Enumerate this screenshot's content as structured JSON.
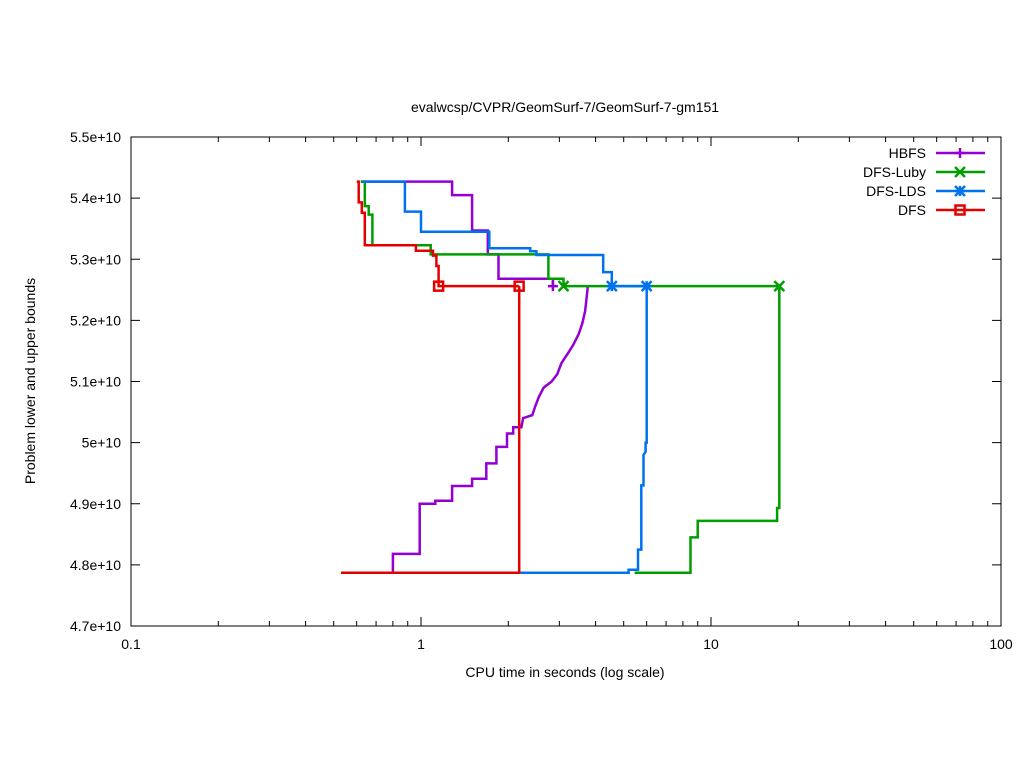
{
  "chart_data": {
    "type": "line",
    "title": "evalwcsp/CVPR/GeomSurf-7/GeomSurf-7-gm151",
    "xlabel": "CPU time in seconds (log scale)",
    "ylabel": "Problem lower and upper bounds",
    "x_scale": "log",
    "xlim": [
      0.1,
      100
    ],
    "ylim": [
      47000000000,
      55000000000
    ],
    "x_ticks": [
      {
        "value": 0.1,
        "label": "0.1"
      },
      {
        "value": 1,
        "label": "1"
      },
      {
        "value": 10,
        "label": "10"
      },
      {
        "value": 100,
        "label": "100"
      }
    ],
    "y_ticks": [
      {
        "value": 47000000000,
        "label": "4.7e+10"
      },
      {
        "value": 48000000000,
        "label": "4.8e+10"
      },
      {
        "value": 49000000000,
        "label": "4.9e+10"
      },
      {
        "value": 50000000000,
        "label": "5e+10"
      },
      {
        "value": 51000000000,
        "label": "5.1e+10"
      },
      {
        "value": 52000000000,
        "label": "5.2e+10"
      },
      {
        "value": 53000000000,
        "label": "5.3e+10"
      },
      {
        "value": 54000000000,
        "label": "5.4e+10"
      },
      {
        "value": 55000000000,
        "label": "5.5e+10"
      }
    ],
    "grid": false,
    "legend_position": "top-right",
    "series": [
      {
        "name": "HBFS",
        "color": "#9400d3",
        "marker": "plus",
        "upper": [
          [
            0.62,
            54270000000
          ],
          [
            1.28,
            54270000000
          ],
          [
            1.28,
            54050000000
          ],
          [
            1.5,
            54050000000
          ],
          [
            1.5,
            53470000000
          ],
          [
            1.7,
            53470000000
          ],
          [
            1.7,
            53080000000
          ],
          [
            1.85,
            53080000000
          ],
          [
            1.85,
            52680000000
          ],
          [
            2.85,
            52680000000
          ],
          [
            2.85,
            52560000000
          ]
        ],
        "upper_markers": [
          [
            2.85,
            52560000000
          ]
        ],
        "lower": [
          [
            0.8,
            47870000000
          ],
          [
            0.8,
            48180000000
          ],
          [
            0.99,
            48180000000
          ],
          [
            0.99,
            49000000000
          ],
          [
            1.12,
            49000000000
          ],
          [
            1.12,
            49050000000
          ],
          [
            1.28,
            49050000000
          ],
          [
            1.28,
            49290000000
          ],
          [
            1.5,
            49290000000
          ],
          [
            1.5,
            49410000000
          ],
          [
            1.68,
            49410000000
          ],
          [
            1.68,
            49660000000
          ],
          [
            1.82,
            49660000000
          ],
          [
            1.82,
            49930000000
          ],
          [
            1.98,
            49930000000
          ],
          [
            1.98,
            50150000000
          ],
          [
            2.08,
            50150000000
          ],
          [
            2.08,
            50250000000
          ],
          [
            2.22,
            50250000000
          ],
          [
            2.25,
            50400000000
          ],
          [
            2.42,
            50450000000
          ],
          [
            2.48,
            50600000000
          ],
          [
            2.55,
            50750000000
          ],
          [
            2.65,
            50900000000
          ],
          [
            2.82,
            51000000000
          ],
          [
            2.95,
            51120000000
          ],
          [
            3.05,
            51300000000
          ],
          [
            3.2,
            51450000000
          ],
          [
            3.35,
            51600000000
          ],
          [
            3.5,
            51780000000
          ],
          [
            3.6,
            51950000000
          ],
          [
            3.68,
            52150000000
          ],
          [
            3.72,
            52350000000
          ],
          [
            3.76,
            52560000000
          ]
        ],
        "lower_markers": []
      },
      {
        "name": "DFS-Luby",
        "color": "#009e00",
        "marker": "x",
        "upper": [
          [
            0.62,
            54270000000
          ],
          [
            0.64,
            54270000000
          ],
          [
            0.64,
            53870000000
          ],
          [
            0.66,
            53870000000
          ],
          [
            0.66,
            53730000000
          ],
          [
            0.68,
            53730000000
          ],
          [
            0.68,
            53230000000
          ],
          [
            1.08,
            53230000000
          ],
          [
            1.08,
            53080000000
          ],
          [
            2.75,
            53080000000
          ],
          [
            2.75,
            52680000000
          ],
          [
            3.1,
            52680000000
          ],
          [
            3.1,
            52560000000
          ],
          [
            17.2,
            52560000000
          ]
        ],
        "upper_markers": [
          [
            3.1,
            52560000000
          ],
          [
            17.2,
            52560000000
          ]
        ],
        "lower": [
          [
            5.45,
            47870000000
          ],
          [
            8.5,
            47870000000
          ],
          [
            8.5,
            48450000000
          ],
          [
            9.0,
            48450000000
          ],
          [
            9.0,
            48720000000
          ],
          [
            16.9,
            48720000000
          ],
          [
            16.9,
            48930000000
          ],
          [
            17.2,
            48930000000
          ],
          [
            17.2,
            52560000000
          ]
        ],
        "lower_markers": []
      },
      {
        "name": "DFS-LDS",
        "color": "#0072ee",
        "marker": "star",
        "upper": [
          [
            0.63,
            54270000000
          ],
          [
            0.88,
            54270000000
          ],
          [
            0.88,
            53780000000
          ],
          [
            1.0,
            53780000000
          ],
          [
            1.0,
            53450000000
          ],
          [
            1.72,
            53450000000
          ],
          [
            1.72,
            53180000000
          ],
          [
            2.38,
            53180000000
          ],
          [
            2.38,
            53130000000
          ],
          [
            2.5,
            53130000000
          ],
          [
            2.5,
            53070000000
          ],
          [
            4.25,
            53070000000
          ],
          [
            4.25,
            52790000000
          ],
          [
            4.55,
            52790000000
          ],
          [
            4.55,
            52560000000
          ],
          [
            6.0,
            52560000000
          ]
        ],
        "upper_markers": [
          [
            4.55,
            52560000000
          ],
          [
            6.0,
            52560000000
          ]
        ],
        "lower": [
          [
            2.2,
            47870000000
          ],
          [
            5.2,
            47870000000
          ],
          [
            5.2,
            47920000000
          ],
          [
            5.6,
            47920000000
          ],
          [
            5.6,
            48250000000
          ],
          [
            5.75,
            48250000000
          ],
          [
            5.75,
            49300000000
          ],
          [
            5.85,
            49300000000
          ],
          [
            5.85,
            49800000000
          ],
          [
            5.95,
            49850000000
          ],
          [
            5.95,
            50000000000
          ],
          [
            6.0,
            50000000000
          ],
          [
            6.0,
            52560000000
          ]
        ],
        "lower_markers": []
      },
      {
        "name": "DFS",
        "color": "#e50000",
        "marker": "square",
        "upper": [
          [
            0.6,
            54270000000
          ],
          [
            0.61,
            54270000000
          ],
          [
            0.61,
            53930000000
          ],
          [
            0.625,
            53930000000
          ],
          [
            0.625,
            53760000000
          ],
          [
            0.64,
            53760000000
          ],
          [
            0.64,
            53230000000
          ],
          [
            0.96,
            53230000000
          ],
          [
            0.96,
            53140000000
          ],
          [
            1.1,
            53140000000
          ],
          [
            1.1,
            53060000000
          ],
          [
            1.13,
            53060000000
          ],
          [
            1.13,
            52890000000
          ],
          [
            1.15,
            52890000000
          ],
          [
            1.15,
            52560000000
          ],
          [
            2.18,
            52560000000
          ]
        ],
        "upper_markers": [
          [
            1.15,
            52560000000
          ],
          [
            2.18,
            52560000000
          ]
        ],
        "lower": [
          [
            0.53,
            47870000000
          ],
          [
            2.18,
            47870000000
          ],
          [
            2.18,
            52560000000
          ]
        ],
        "lower_markers": []
      }
    ]
  }
}
